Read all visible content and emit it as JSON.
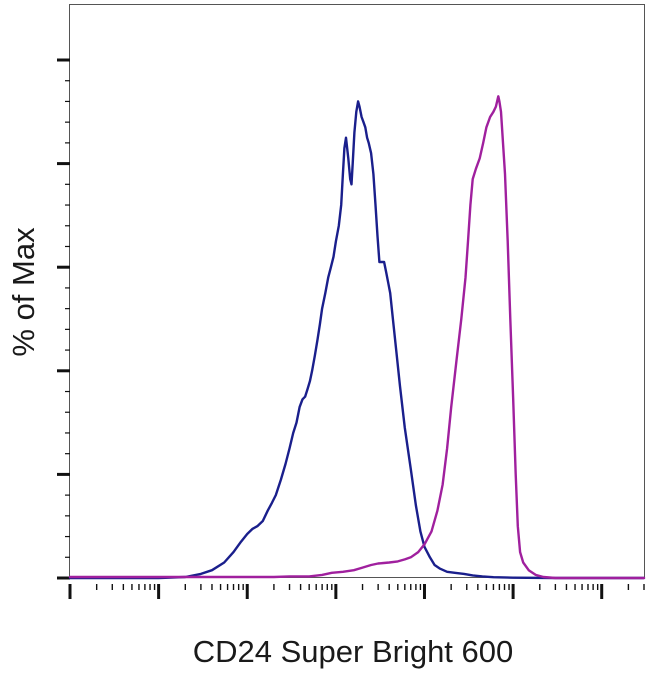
{
  "chart_data": {
    "type": "line",
    "title": "",
    "xlabel": "CD24 Super Bright 600",
    "ylabel": "% of Max",
    "xscale": "log",
    "xlim": [
      1,
      3000000
    ],
    "ylim": [
      0,
      100
    ],
    "legend": "none",
    "grid": false,
    "yticks": [
      0,
      20,
      40,
      60,
      80,
      100
    ],
    "series": [
      {
        "color": "#1a1f8c",
        "points": [
          [
            1,
            0
          ],
          [
            10,
            0
          ],
          [
            20,
            0.2
          ],
          [
            30,
            0.8
          ],
          [
            40,
            1.5
          ],
          [
            55,
            3
          ],
          [
            70,
            5
          ],
          [
            85,
            7
          ],
          [
            100,
            8.5
          ],
          [
            115,
            9.5
          ],
          [
            130,
            10
          ],
          [
            150,
            11
          ],
          [
            170,
            13
          ],
          [
            190,
            14.5
          ],
          [
            210,
            16
          ],
          [
            240,
            19
          ],
          [
            270,
            22
          ],
          [
            300,
            25
          ],
          [
            330,
            28
          ],
          [
            360,
            30
          ],
          [
            390,
            33
          ],
          [
            420,
            34.5
          ],
          [
            450,
            35
          ],
          [
            480,
            36.5
          ],
          [
            510,
            38
          ],
          [
            540,
            40
          ],
          [
            580,
            43
          ],
          [
            620,
            46
          ],
          [
            660,
            49
          ],
          [
            700,
            52
          ],
          [
            760,
            55
          ],
          [
            820,
            58
          ],
          [
            880,
            60
          ],
          [
            940,
            62
          ],
          [
            1000,
            65
          ],
          [
            1080,
            68
          ],
          [
            1150,
            72
          ],
          [
            1200,
            78
          ],
          [
            1250,
            83
          ],
          [
            1300,
            85
          ],
          [
            1380,
            81
          ],
          [
            1450,
            77
          ],
          [
            1500,
            76
          ],
          [
            1550,
            80
          ],
          [
            1620,
            86
          ],
          [
            1700,
            90
          ],
          [
            1780,
            92
          ],
          [
            1850,
            91
          ],
          [
            1950,
            89
          ],
          [
            2050,
            88
          ],
          [
            2150,
            87
          ],
          [
            2250,
            85
          ],
          [
            2350,
            84
          ],
          [
            2500,
            82
          ],
          [
            2650,
            78
          ],
          [
            2800,
            72
          ],
          [
            2950,
            66
          ],
          [
            3100,
            61
          ],
          [
            3300,
            61
          ],
          [
            3500,
            61
          ],
          [
            3700,
            59
          ],
          [
            3900,
            57
          ],
          [
            4100,
            55
          ],
          [
            4400,
            50
          ],
          [
            4800,
            44
          ],
          [
            5300,
            37
          ],
          [
            6000,
            29
          ],
          [
            7000,
            21
          ],
          [
            8000,
            14
          ],
          [
            9000,
            9
          ],
          [
            10000,
            6
          ],
          [
            11500,
            4
          ],
          [
            13000,
            2.5
          ],
          [
            15000,
            1.8
          ],
          [
            18000,
            1.2
          ],
          [
            22000,
            1
          ],
          [
            28000,
            0.8
          ],
          [
            35000,
            0.5
          ],
          [
            45000,
            0.3
          ],
          [
            60000,
            0.15
          ],
          [
            100000,
            0.05
          ],
          [
            300000,
            0
          ],
          [
            3000000,
            0
          ]
        ]
      },
      {
        "color": "#a0209e",
        "points": [
          [
            1,
            0.2
          ],
          [
            200,
            0.2
          ],
          [
            300,
            0.3
          ],
          [
            500,
            0.3
          ],
          [
            700,
            0.6
          ],
          [
            900,
            1
          ],
          [
            1200,
            1.2
          ],
          [
            1600,
            1.5
          ],
          [
            2000,
            2
          ],
          [
            2500,
            2.5
          ],
          [
            3000,
            2.8
          ],
          [
            4000,
            3
          ],
          [
            5000,
            3.2
          ],
          [
            6000,
            3.6
          ],
          [
            7000,
            4
          ],
          [
            8500,
            5
          ],
          [
            10000,
            6.5
          ],
          [
            12000,
            9
          ],
          [
            14000,
            13
          ],
          [
            16000,
            18
          ],
          [
            18000,
            25
          ],
          [
            20000,
            33
          ],
          [
            23000,
            42
          ],
          [
            26000,
            50
          ],
          [
            29000,
            58
          ],
          [
            31000,
            65
          ],
          [
            33000,
            72
          ],
          [
            35000,
            77
          ],
          [
            38000,
            79
          ],
          [
            42000,
            81
          ],
          [
            46000,
            84
          ],
          [
            50000,
            87
          ],
          [
            55000,
            89
          ],
          [
            60000,
            90
          ],
          [
            64000,
            91
          ],
          [
            68000,
            93
          ],
          [
            70000,
            92
          ],
          [
            73000,
            90
          ],
          [
            77000,
            84
          ],
          [
            81000,
            78
          ],
          [
            87000,
            65
          ],
          [
            93000,
            50
          ],
          [
            100000,
            35
          ],
          [
            107000,
            20
          ],
          [
            113000,
            10
          ],
          [
            120000,
            5
          ],
          [
            130000,
            3
          ],
          [
            150000,
            1.5
          ],
          [
            180000,
            0.6
          ],
          [
            220000,
            0.2
          ],
          [
            300000,
            0
          ],
          [
            3000000,
            0
          ]
        ]
      }
    ]
  }
}
